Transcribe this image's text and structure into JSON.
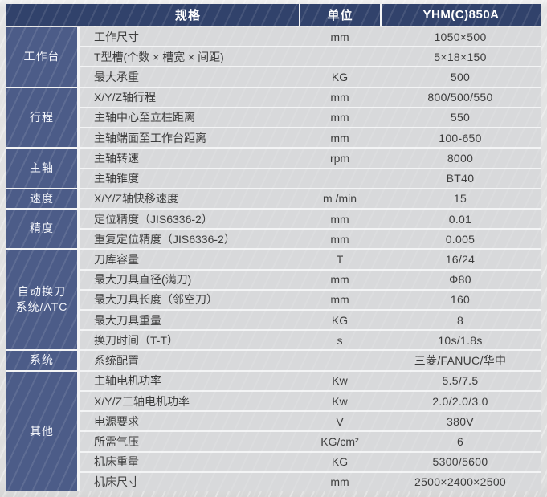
{
  "header": {
    "spec": "规格",
    "unit": "单位",
    "model": "YHM(C)850A"
  },
  "groups": [
    {
      "category": "工作台",
      "rows": [
        {
          "spec": "工作尺寸",
          "unit": "mm",
          "value": "1050×500"
        },
        {
          "spec": "T型槽(个数 × 槽宽 × 间距)",
          "unit": "",
          "value": "5×18×150"
        },
        {
          "spec": "最大承重",
          "unit": "KG",
          "value": "500"
        }
      ]
    },
    {
      "category": "行程",
      "rows": [
        {
          "spec": "X/Y/Z轴行程",
          "unit": "mm",
          "value": "800/500/550"
        },
        {
          "spec": "主轴中心至立柱距离",
          "unit": "mm",
          "value": "550"
        },
        {
          "spec": "主轴端面至工作台距离",
          "unit": "mm",
          "value": "100-650"
        }
      ]
    },
    {
      "category": "主轴",
      "rows": [
        {
          "spec": "主轴转速",
          "unit": "rpm",
          "value": "8000"
        },
        {
          "spec": "主轴锥度",
          "unit": "",
          "value": "BT40"
        }
      ]
    },
    {
      "category": "速度",
      "rows": [
        {
          "spec": "X/Y/Z轴快移速度",
          "unit": "m /min",
          "value": "15"
        }
      ]
    },
    {
      "category": "精度",
      "rows": [
        {
          "spec": "定位精度（JIS6336-2）",
          "unit": "mm",
          "value": "0.01"
        },
        {
          "spec": "重复定位精度（JIS6336-2）",
          "unit": "mm",
          "value": "0.005"
        }
      ]
    },
    {
      "category": "自动换刀\n系统/ATC",
      "rows": [
        {
          "spec": "刀库容量",
          "unit": "T",
          "value": "16/24"
        },
        {
          "spec": "最大刀具直径(满刀)",
          "unit": "mm",
          "value": "Φ80"
        },
        {
          "spec": "最大刀具长度（邻空刀）",
          "unit": "mm",
          "value": "160"
        },
        {
          "spec": "最大刀具重量",
          "unit": "KG",
          "value": "8"
        },
        {
          "spec": "换刀时间（T-T）",
          "unit": "s",
          "value": "10s/1.8s"
        }
      ]
    },
    {
      "category": "系统",
      "rows": [
        {
          "spec": "系统配置",
          "unit": "",
          "value": "三菱/FANUC/华中"
        }
      ]
    },
    {
      "category": "其他",
      "rows": [
        {
          "spec": "主轴电机功率",
          "unit": "Kw",
          "value": "5.5/7.5"
        },
        {
          "spec": "X/Y/Z三轴电机功率",
          "unit": "Kw",
          "value": "2.0/2.0/3.0"
        },
        {
          "spec": "电源要求",
          "unit": "V",
          "value": "380V"
        },
        {
          "spec": "所需气压",
          "unit": "KG/cm²",
          "value": "6"
        },
        {
          "spec": "机床重量",
          "unit": "KG",
          "value": "5300/5600"
        },
        {
          "spec": "机床尺寸",
          "unit": "mm",
          "value": "2500×2400×2500"
        }
      ]
    }
  ],
  "colors": {
    "header_bg": "#31426b",
    "category_bg": "#4c5c88",
    "row_bg": "#d8d9db",
    "separator": "#f3f4f5",
    "text": "#3b3b3b",
    "header_text": "#ffffff"
  }
}
